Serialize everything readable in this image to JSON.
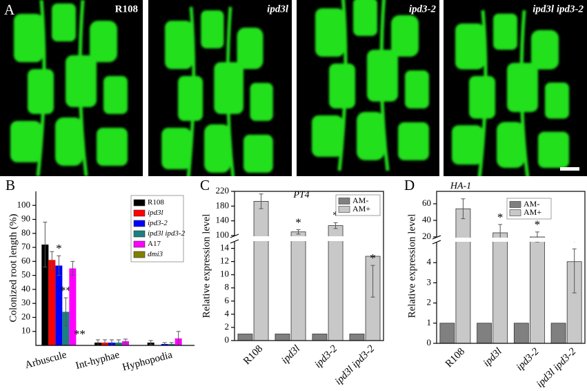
{
  "figure": {
    "panel_label": "A",
    "micrographs": [
      {
        "label": "R108"
      },
      {
        "label": "ipd3l",
        "italic": true
      },
      {
        "label": "ipd3-2",
        "italic": true
      },
      {
        "label": "ipd3l ipd3-2",
        "italic": true
      }
    ]
  },
  "chart_data": [
    {
      "type": "bar",
      "panel_label": "B",
      "y_label": "Colonized root length (%)",
      "categories": [
        "Arbuscule",
        "Int-hyphae",
        "Hyphopodia"
      ],
      "ylim": [
        0,
        110
      ],
      "yticks": [
        10,
        20,
        30,
        40,
        50,
        60,
        70,
        80,
        90,
        100
      ],
      "legend": "upper right",
      "series": [
        {
          "name": "R108",
          "color": "#000000",
          "values": [
            72,
            2,
            2
          ],
          "errors": [
            16,
            2,
            1.5
          ]
        },
        {
          "name": "ipd3l",
          "color": "#ff0000",
          "italic": true,
          "values": [
            61,
            2,
            0
          ],
          "errors": [
            6,
            2,
            0
          ]
        },
        {
          "name": "ipd3-2",
          "color": "#0000ff",
          "italic": true,
          "values": [
            57,
            2,
            1
          ],
          "errors": [
            7,
            2,
            1
          ],
          "notes": [
            "*",
            null,
            null
          ]
        },
        {
          "name": "ipd3l ipd3-2",
          "color": "#1a8080",
          "italic": true,
          "values": [
            24,
            2,
            1
          ],
          "errors": [
            10,
            2,
            1
          ],
          "notes": [
            "**",
            null,
            null
          ]
        },
        {
          "name": "A17",
          "color": "#ff00ff",
          "values": [
            55,
            3,
            5
          ],
          "errors": [
            5,
            1.5,
            5
          ]
        },
        {
          "name": "dmi3",
          "color": "#808000",
          "italic": true,
          "values": [
            0,
            0,
            0
          ],
          "errors": [
            0,
            0,
            0
          ],
          "notes": [
            "**",
            null,
            null
          ]
        }
      ]
    },
    {
      "type": "bar",
      "panel_label": "C",
      "title": "PT4",
      "title_italic": true,
      "y_label": "Relative expression level",
      "categories": [
        "R108",
        "ipd3l",
        "ipd3-2",
        "ipd3l ipd3-2"
      ],
      "italic_categories": [
        false,
        true,
        true,
        true
      ],
      "y_segments": [
        {
          "ylim": [
            0,
            15
          ],
          "yticks": [
            0,
            2,
            4,
            6,
            8,
            10,
            12,
            14
          ]
        },
        {
          "ylim": [
            100,
            220
          ],
          "yticks": [
            100,
            140,
            180,
            220
          ]
        }
      ],
      "legend": "upper right",
      "series": [
        {
          "name": "AM-",
          "color": "#808080",
          "values": [
            1,
            1,
            1,
            1
          ]
        },
        {
          "name": "AM+",
          "color": "#c8c8c8",
          "values": [
            193,
            110,
            127,
            12.8
          ],
          "errors": [
            20,
            6,
            8,
            6.2
          ],
          "notes": [
            null,
            "*",
            "*",
            "*"
          ]
        }
      ]
    },
    {
      "type": "bar",
      "panel_label": "D",
      "title": "HA-1",
      "title_italic": true,
      "y_label": "Relative expression level",
      "categories": [
        "R108",
        "ipd3l",
        "ipd3-2",
        "ipd3l ipd3-2"
      ],
      "italic_categories": [
        false,
        true,
        true,
        true
      ],
      "y_segments": [
        {
          "ylim": [
            0,
            5
          ],
          "yticks": [
            0,
            1,
            2,
            3,
            4
          ]
        },
        {
          "ylim": [
            20,
            75
          ],
          "yticks": [
            20,
            40,
            60
          ]
        }
      ],
      "legend": "upper right",
      "series": [
        {
          "name": "AM-",
          "color": "#808080",
          "values": [
            1,
            1,
            1,
            1
          ]
        },
        {
          "name": "AM+",
          "color": "#c8c8c8",
          "values": [
            54,
            25,
            20,
            4.05
          ],
          "errors": [
            12,
            10,
            6,
            1.55
          ],
          "notes": [
            null,
            "*",
            "*",
            "*"
          ]
        }
      ]
    }
  ]
}
